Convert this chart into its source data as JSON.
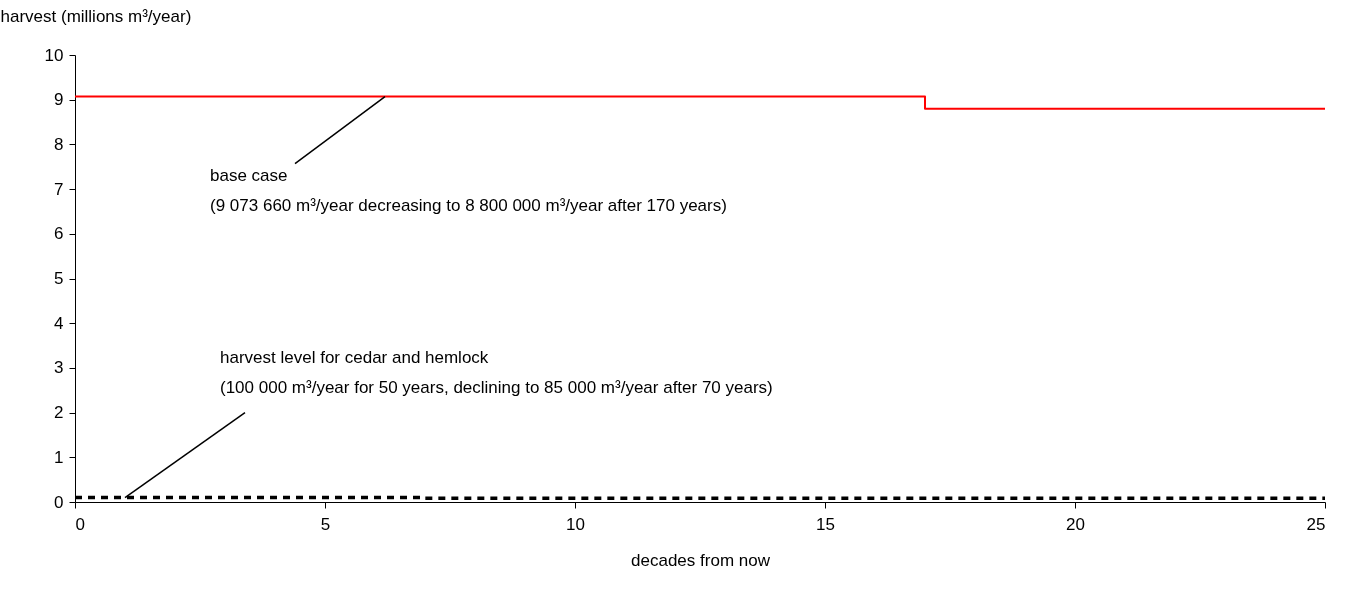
{
  "chart_data": {
    "type": "step",
    "xlabel": "decades from now",
    "ylabel": "harvest (millions m³/year)",
    "xlim": [
      0,
      25
    ],
    "xticks": [
      0,
      5,
      10,
      15,
      20,
      25
    ],
    "ylim": [
      0,
      10
    ],
    "yticks": [
      0,
      1,
      2,
      3,
      4,
      5,
      6,
      7,
      8,
      9,
      10
    ],
    "grid": false,
    "legend": false,
    "marker": "none",
    "series": [
      {
        "color": "#ff0000",
        "x": [
          0,
          17,
          25
        ],
        "values": [
          9.07,
          8.8,
          8.8
        ],
        "line_style": "solid"
      },
      {
        "color": "#000000",
        "x": [
          0,
          7,
          25
        ],
        "values": [
          0.1,
          0.085,
          0.085
        ],
        "line_style": "dashed"
      }
    ],
    "annotations": [
      {
        "text": "base case\n(9 073 660 m³/year decreasing to 8 800 000 m³/year after 170 years)",
        "x": 6.2,
        "y": 9.07
      },
      {
        "text": "harvest level for cedar and hemlock\n(100 000 m³/year for 50 years, declining to 85 000 m³/year after 70 years)",
        "x": 1,
        "y": 0.1
      }
    ]
  }
}
